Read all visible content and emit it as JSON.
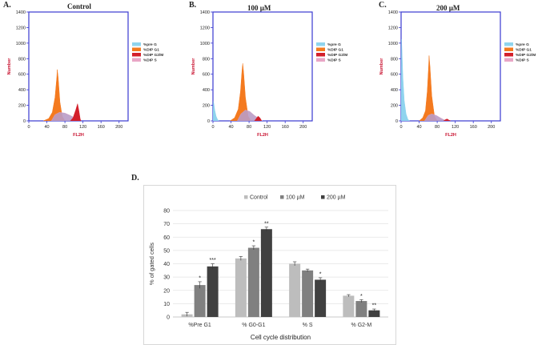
{
  "panels": {
    "a": {
      "letter": "A.",
      "title": "Control"
    },
    "b": {
      "letter": "B.",
      "title": "100 µM"
    },
    "c": {
      "letter": "C.",
      "title": "200 µM"
    },
    "d": {
      "letter": "D."
    }
  },
  "colors": {
    "axis": "#3a3ad0",
    "label_red": "#c8102e",
    "preG": "#8fd4ee",
    "g1": "#f47a1f",
    "g2m": "#d31f2a",
    "s": "#e9a6c6",
    "s_overlay": "#6f8fc8",
    "bar_control": "#bdbdbd",
    "bar_100": "#808080",
    "bar_200": "#404040"
  },
  "chart_data": [
    {
      "type": "area",
      "panel": "A",
      "title": "Control",
      "xlabel": "FL2H",
      "ylabel": "Number",
      "xlim": [
        0,
        220
      ],
      "ylim": [
        0,
        1400
      ],
      "x_ticks": [
        "0",
        "40",
        "80",
        "120",
        "160",
        "200"
      ],
      "y_ticks": [
        "0",
        "200",
        "400",
        "600",
        "800",
        "1000",
        "1200",
        "1400"
      ],
      "legend": [
        "%pre G",
        "%DIP G1",
        "%DIP G2/M",
        "%DIP S"
      ],
      "series": [
        {
          "name": "%pre G",
          "points": [
            [
              0,
              0
            ],
            [
              0,
              0
            ]
          ]
        },
        {
          "name": "%DIP G1",
          "points": [
            [
              32,
              0
            ],
            [
              44,
              30
            ],
            [
              52,
              110
            ],
            [
              58,
              300
            ],
            [
              62,
              560
            ],
            [
              63,
              660
            ],
            [
              65,
              560
            ],
            [
              69,
              240
            ],
            [
              74,
              60
            ],
            [
              80,
              0
            ]
          ]
        },
        {
          "name": "%DIP G2/M",
          "points": [
            [
              92,
              0
            ],
            [
              98,
              40
            ],
            [
              104,
              140
            ],
            [
              108,
              220
            ],
            [
              111,
              130
            ],
            [
              114,
              20
            ],
            [
              116,
              0
            ]
          ]
        },
        {
          "name": "%DIP S",
          "points": [
            [
              50,
              0
            ],
            [
              58,
              80
            ],
            [
              68,
              110
            ],
            [
              80,
              100
            ],
            [
              92,
              70
            ],
            [
              104,
              30
            ],
            [
              110,
              0
            ]
          ]
        }
      ]
    },
    {
      "type": "area",
      "panel": "B",
      "title": "100 µM",
      "xlabel": "FL2H",
      "ylabel": "Number",
      "xlim": [
        0,
        220
      ],
      "ylim": [
        0,
        1400
      ],
      "x_ticks": [
        "0",
        "40",
        "80",
        "120",
        "160",
        "200"
      ],
      "y_ticks": [
        "0",
        "200",
        "400",
        "600",
        "800",
        "1000",
        "1200",
        "1400"
      ],
      "legend": [
        "%pre G",
        "%DIP G1",
        "%DIP G2/M",
        "%DIP S"
      ],
      "series": [
        {
          "name": "%pre G",
          "points": [
            [
              0,
              0
            ],
            [
              1,
              250
            ],
            [
              2,
              220
            ],
            [
              4,
              140
            ],
            [
              7,
              60
            ],
            [
              10,
              20
            ],
            [
              13,
              0
            ]
          ]
        },
        {
          "name": "%DIP G1",
          "points": [
            [
              38,
              0
            ],
            [
              48,
              40
            ],
            [
              56,
              150
            ],
            [
              61,
              380
            ],
            [
              64,
              620
            ],
            [
              66,
              740
            ],
            [
              68,
              620
            ],
            [
              72,
              300
            ],
            [
              78,
              60
            ],
            [
              84,
              0
            ]
          ]
        },
        {
          "name": "%DIP G2/M",
          "points": [
            [
              92,
              0
            ],
            [
              96,
              30
            ],
            [
              100,
              60
            ],
            [
              104,
              40
            ],
            [
              108,
              0
            ]
          ]
        },
        {
          "name": "%DIP S",
          "points": [
            [
              54,
              0
            ],
            [
              62,
              90
            ],
            [
              72,
              140
            ],
            [
              82,
              120
            ],
            [
              92,
              70
            ],
            [
              102,
              30
            ],
            [
              110,
              0
            ]
          ]
        }
      ]
    },
    {
      "type": "area",
      "panel": "C",
      "title": "200 µM",
      "xlabel": "FL2H",
      "ylabel": "Number",
      "xlim": [
        0,
        220
      ],
      "ylim": [
        0,
        1400
      ],
      "x_ticks": [
        "0",
        "40",
        "80",
        "120",
        "160",
        "200"
      ],
      "y_ticks": [
        "0",
        "200",
        "400",
        "600",
        "800",
        "1000",
        "1200",
        "1400"
      ],
      "legend": [
        "%pre G",
        "%DIP G1",
        "%DIP G2/M",
        "%DIP S"
      ],
      "series": [
        {
          "name": "%pre G",
          "points": [
            [
              0,
              0
            ],
            [
              1,
              1050
            ],
            [
              2,
              900
            ],
            [
              4,
              560
            ],
            [
              7,
              260
            ],
            [
              11,
              90
            ],
            [
              15,
              20
            ],
            [
              19,
              0
            ]
          ]
        },
        {
          "name": "%DIP G1",
          "points": [
            [
              40,
              0
            ],
            [
              48,
              40
            ],
            [
              54,
              130
            ],
            [
              58,
              380
            ],
            [
              61,
              700
            ],
            [
              62,
              840
            ],
            [
              64,
              700
            ],
            [
              68,
              320
            ],
            [
              74,
              60
            ],
            [
              80,
              0
            ]
          ]
        },
        {
          "name": "%DIP G2/M",
          "points": [
            [
              94,
              0
            ],
            [
              98,
              15
            ],
            [
              102,
              25
            ],
            [
              106,
              10
            ],
            [
              110,
              0
            ]
          ]
        },
        {
          "name": "%DIP S",
          "points": [
            [
              52,
              0
            ],
            [
              60,
              70
            ],
            [
              68,
              90
            ],
            [
              78,
              70
            ],
            [
              90,
              30
            ],
            [
              100,
              0
            ]
          ]
        }
      ]
    },
    {
      "type": "bar",
      "panel": "D",
      "title": "",
      "xlabel": "Cell cycle distribution",
      "ylabel": "% of gated cells",
      "ylim": [
        0,
        80
      ],
      "y_ticks": [
        "0",
        "10",
        "20",
        "30",
        "40",
        "50",
        "60",
        "70",
        "80"
      ],
      "categories": [
        "%Pre G1",
        "% G0-G1",
        "% S",
        "% G2-M"
      ],
      "series": [
        {
          "name": "Control",
          "values": [
            2,
            44,
            40,
            16
          ],
          "errors": [
            1.5,
            1.5,
            1.5,
            0.8
          ],
          "sig": [
            "",
            "",
            "",
            ""
          ]
        },
        {
          "name": "100 µM",
          "values": [
            24,
            52,
            35,
            12
          ],
          "errors": [
            2.5,
            1.5,
            1,
            1
          ],
          "sig": [
            "*",
            "*",
            "",
            "*"
          ]
        },
        {
          "name": "200 µM",
          "values": [
            38,
            66,
            28,
            5
          ],
          "errors": [
            2,
            1.5,
            1.5,
            1
          ],
          "sig": [
            "***",
            "**",
            "*",
            "**"
          ]
        }
      ]
    }
  ]
}
